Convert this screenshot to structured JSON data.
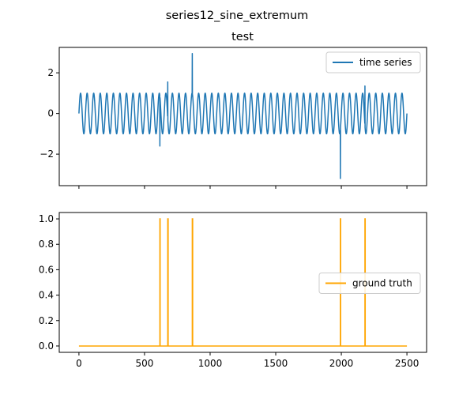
{
  "figure": {
    "suptitle": "series12_sine_extremum"
  },
  "chart_data": [
    {
      "type": "line",
      "title": "test",
      "xlabel": "",
      "ylabel": "",
      "xlim": [
        -150,
        2650
      ],
      "ylim": [
        -3.55,
        3.25
      ],
      "xticks": [
        0,
        500,
        1000,
        1500,
        2000,
        2500
      ],
      "xtick_labels_visible": false,
      "yticks": [
        -2,
        0,
        2
      ],
      "ytick_labels": [
        "−2",
        "0",
        "2"
      ],
      "grid": false,
      "legend": {
        "position": "upper right",
        "entries": [
          "time series"
        ]
      },
      "series": [
        {
          "name": "time series",
          "color": "#1f77b4",
          "x_range": [
            0,
            2500
          ],
          "base_signal": {
            "shape": "sine",
            "amplitude": 1.0,
            "period": 50
          },
          "spikes": [
            {
              "x": 617,
              "y": -1.6
            },
            {
              "x": 677,
              "y": 1.55
            },
            {
              "x": 864,
              "y": 2.95
            },
            {
              "x": 1993,
              "y": -3.2
            },
            {
              "x": 2180,
              "y": 1.35
            }
          ]
        }
      ]
    },
    {
      "type": "line",
      "title": "",
      "xlabel": "",
      "ylabel": "",
      "xlim": [
        -150,
        2650
      ],
      "ylim": [
        -0.05,
        1.05
      ],
      "xticks": [
        0,
        500,
        1000,
        1500,
        2000,
        2500
      ],
      "xtick_labels": [
        "0",
        "500",
        "1000",
        "1500",
        "2000",
        "2500"
      ],
      "yticks": [
        0.0,
        0.2,
        0.4,
        0.6,
        0.8,
        1.0
      ],
      "ytick_labels": [
        "0.0",
        "0.2",
        "0.4",
        "0.6",
        "0.8",
        "1.0"
      ],
      "grid": false,
      "legend": {
        "position": "center right",
        "entries": [
          "ground truth"
        ]
      },
      "series": [
        {
          "name": "ground truth",
          "color": "#ffa500",
          "x": [
            0,
            617,
            617,
            619,
            619,
            677,
            677,
            680,
            680,
            864,
            864,
            867,
            867,
            1993,
            1993,
            1995,
            1995,
            2180,
            2180,
            2182,
            2182,
            2500
          ],
          "y": [
            0,
            0,
            1,
            1,
            0,
            0,
            1,
            1,
            0,
            0,
            1,
            1,
            0,
            0,
            1,
            1,
            0,
            0,
            1,
            1,
            0,
            0
          ]
        }
      ]
    }
  ]
}
